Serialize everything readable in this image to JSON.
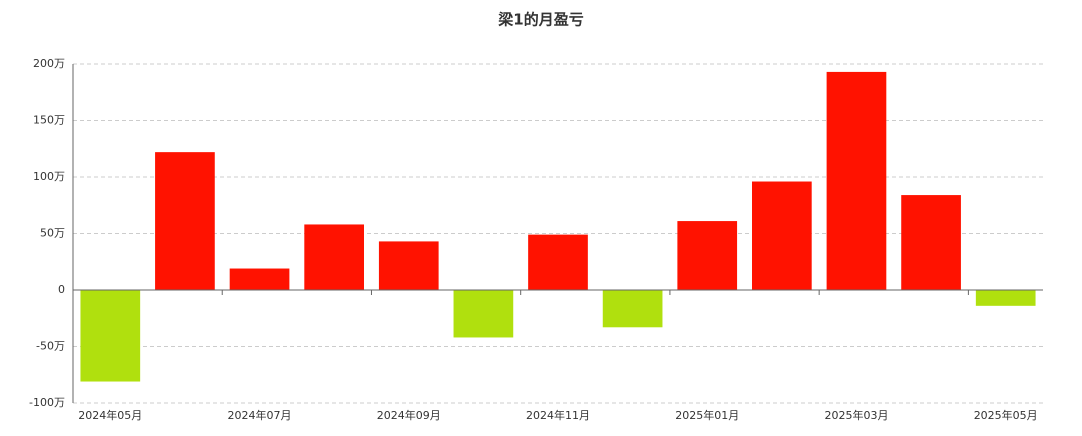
{
  "chart_data": {
    "type": "bar",
    "title": "梁1的月盈亏",
    "categories": [
      "2024年05月",
      null,
      "2024年07月",
      null,
      "2024年09月",
      null,
      "2024年11月",
      null,
      "2025年01月",
      null,
      "2025年03月",
      null,
      "2025年05月"
    ],
    "values": [
      -81,
      122,
      19,
      58,
      43,
      -42,
      49,
      -33,
      61,
      96,
      193,
      84,
      -14
    ],
    "positive_color": "#ff1200",
    "negative_color": "#b0e00e",
    "ylim": [
      -100,
      200
    ],
    "yticks": [
      {
        "value": -100,
        "label": "-100万"
      },
      {
        "value": -50,
        "label": "-50万"
      },
      0,
      {
        "value": 50,
        "label": "50万"
      },
      {
        "value": 100,
        "label": "100万"
      },
      {
        "value": 150,
        "label": "150万"
      },
      {
        "value": 200,
        "label": "200万"
      }
    ],
    "grid": true
  }
}
